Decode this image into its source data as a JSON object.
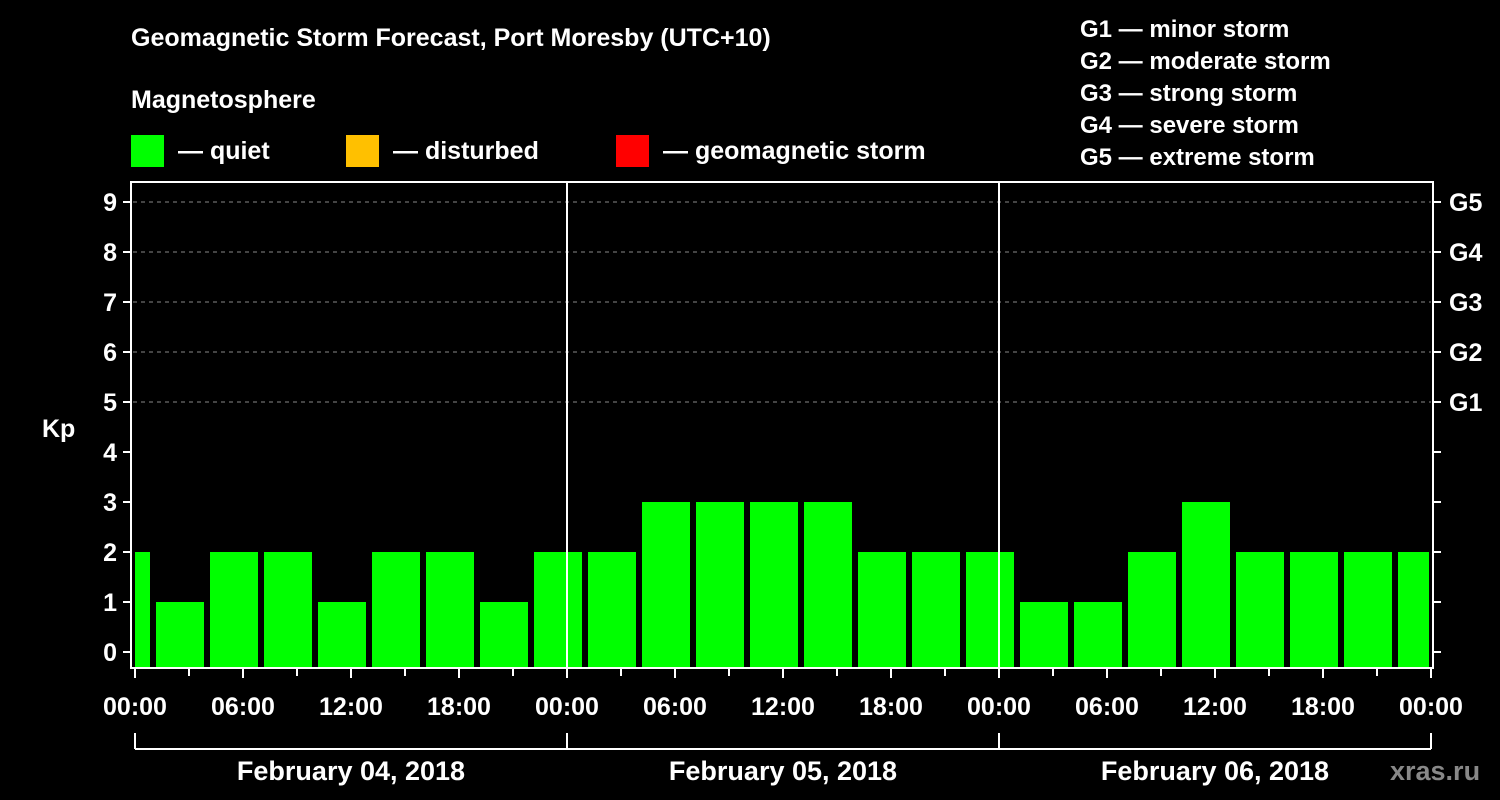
{
  "header": {
    "title": "Geomagnetic Storm Forecast, Port Moresby (UTC+10)",
    "section_label": "Magnetosphere"
  },
  "legend": {
    "items": [
      {
        "label": "— quiet",
        "color": "#00ff00"
      },
      {
        "label": "— disturbed",
        "color": "#ffc000"
      },
      {
        "label": "— geomagnetic storm",
        "color": "#ff0000"
      }
    ]
  },
  "g_legend": [
    "G1 — minor storm",
    "G2 — moderate storm",
    "G3 — strong storm",
    "G4 — severe storm",
    "G5 — extreme storm"
  ],
  "watermark": "xras.ru",
  "chart_data": {
    "type": "bar",
    "title": "Geomagnetic Storm Forecast, Port Moresby (UTC+10)",
    "xlabel": "",
    "ylabel": "Kp",
    "ylim": [
      0,
      9
    ],
    "y_ticks": [
      0,
      1,
      2,
      3,
      4,
      5,
      6,
      7,
      8,
      9
    ],
    "right_axis_labels": [
      {
        "kp": 5,
        "label": "G1"
      },
      {
        "kp": 6,
        "label": "G2"
      },
      {
        "kp": 7,
        "label": "G3"
      },
      {
        "kp": 8,
        "label": "G4"
      },
      {
        "kp": 9,
        "label": "G5"
      }
    ],
    "grid": "dashed horizontal lines at Kp 5-9",
    "x_tick_labels": [
      "00:00",
      "06:00",
      "12:00",
      "18:00",
      "00:00",
      "06:00",
      "12:00",
      "18:00",
      "00:00",
      "06:00",
      "12:00",
      "18:00",
      "00:00"
    ],
    "day_labels": [
      "February 04, 2018",
      "February 05, 2018",
      "February 06, 2018"
    ],
    "interval_hours": 3,
    "leading_partial_bar": 2,
    "categories": [
      "Feb04 00-03",
      "Feb04 03-06",
      "Feb04 06-09",
      "Feb04 09-12",
      "Feb04 12-15",
      "Feb04 15-18",
      "Feb04 18-21",
      "Feb04 21-24",
      "Feb05 00-03",
      "Feb05 03-06",
      "Feb05 06-09",
      "Feb05 09-12",
      "Feb05 12-15",
      "Feb05 15-18",
      "Feb05 18-21",
      "Feb05 21-24",
      "Feb06 00-03",
      "Feb06 03-06",
      "Feb06 06-09",
      "Feb06 09-12",
      "Feb06 12-15",
      "Feb06 15-18",
      "Feb06 18-21",
      "Feb06 21-24"
    ],
    "values": [
      1,
      2,
      2,
      1,
      2,
      2,
      1,
      2,
      2,
      3,
      3,
      3,
      3,
      2,
      2,
      2,
      1,
      1,
      2,
      3,
      2,
      2,
      2,
      2
    ],
    "bar_colors": "all #00ff00 (quiet)"
  }
}
